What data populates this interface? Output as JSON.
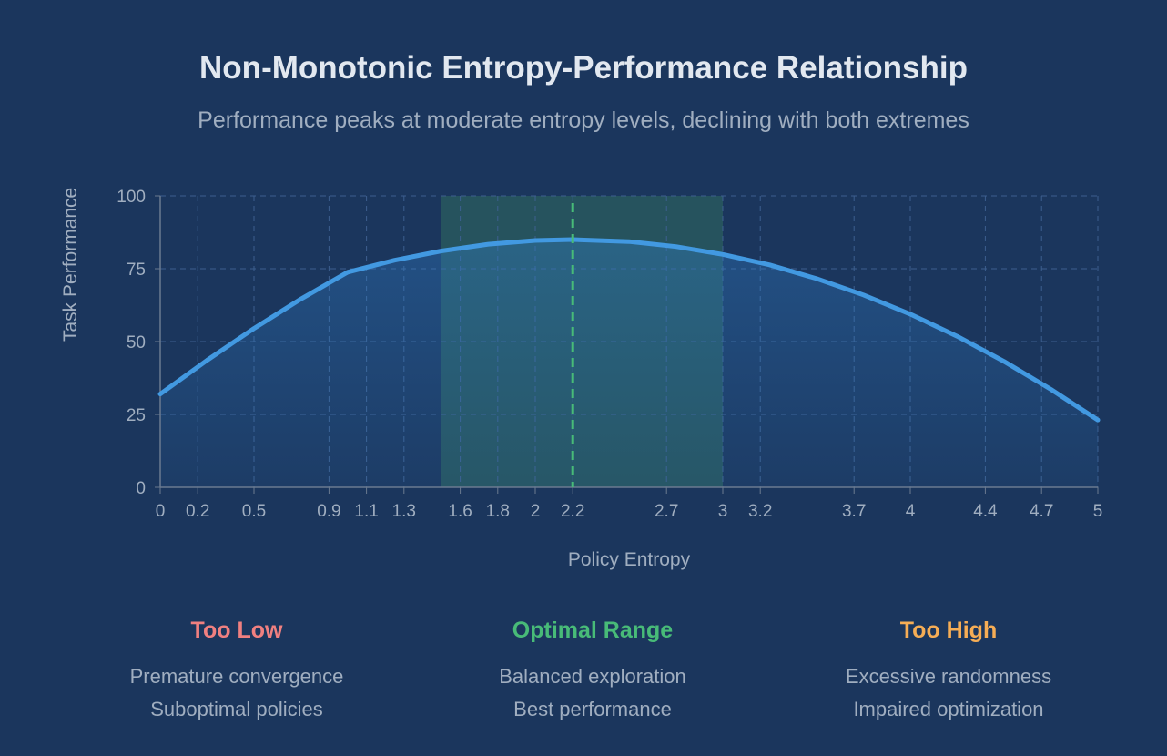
{
  "title": "Non-Monotonic Entropy-Performance Relationship",
  "subtitle": "Performance peaks at moderate entropy levels, declining with both extremes",
  "chart_data": {
    "type": "area",
    "xlabel": "Policy Entropy",
    "ylabel": "Task Performance",
    "xlim": [
      0,
      5
    ],
    "ylim": [
      0,
      100
    ],
    "grid": true,
    "x_ticks": [
      0,
      0.2,
      0.5,
      0.9,
      1.1,
      1.3,
      1.6,
      1.8,
      2,
      2.2,
      2.7,
      3,
      3.2,
      3.7,
      4,
      4.4,
      4.7,
      5
    ],
    "y_ticks": [
      0,
      25,
      50,
      75,
      100
    ],
    "series": [
      {
        "x": [
          0,
          0.25,
          0.5,
          0.75,
          1,
          1.25,
          1.5,
          1.75,
          2,
          2.2,
          2.5,
          2.75,
          3,
          3.25,
          3.5,
          3.75,
          4,
          4.25,
          4.5,
          4.75,
          5
        ],
        "y": [
          32,
          43.6,
          54.5,
          64.6,
          73.8,
          77.9,
          81.1,
          83.4,
          84.7,
          85,
          84.3,
          82.6,
          79.9,
          76.3,
          71.6,
          66,
          59.4,
          51.8,
          43.2,
          33.6,
          23.1
        ],
        "color": "#4299e1"
      }
    ],
    "optimal_band": [
      1.5,
      3.0
    ],
    "peak_line_x": 2.2,
    "colors": {
      "band": "#2f6b5e",
      "peak_line": "#48bb78"
    }
  },
  "legend": [
    {
      "heading": "Too Low",
      "color": "#f08080",
      "lines": [
        "Premature convergence",
        "Suboptimal policies"
      ]
    },
    {
      "heading": "Optimal Range",
      "color": "#48bb78",
      "lines": [
        "Balanced exploration",
        "Best performance"
      ]
    },
    {
      "heading": "Too High",
      "color": "#f6ad55",
      "lines": [
        "Excessive randomness",
        "Impaired optimization"
      ]
    }
  ]
}
